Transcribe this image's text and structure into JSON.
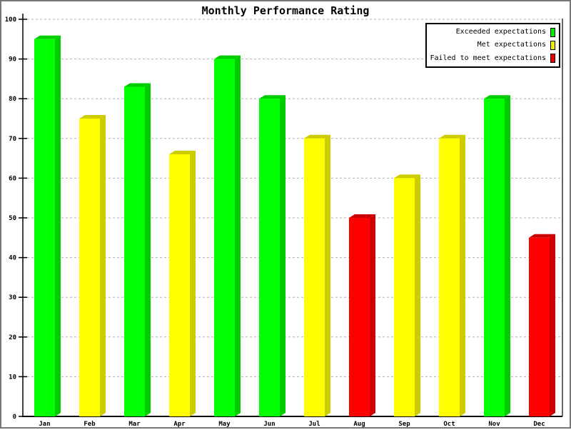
{
  "title": "Monthly Performance Rating",
  "chart_data": {
    "type": "bar",
    "title": "Monthly Performance Rating",
    "categories": [
      "Jan",
      "Feb",
      "Mar",
      "Apr",
      "May",
      "Jun",
      "Jul",
      "Aug",
      "Sep",
      "Oct",
      "Nov",
      "Dec"
    ],
    "values": [
      95,
      75,
      83,
      66,
      90,
      80,
      70,
      50,
      60,
      70,
      80,
      45
    ],
    "statuses": [
      "exceeded",
      "met",
      "exceeded",
      "met",
      "exceeded",
      "exceeded",
      "met",
      "failed",
      "met",
      "met",
      "exceeded",
      "failed"
    ],
    "series": [
      {
        "name": "Exceeded expectations",
        "months": [
          "Jan",
          "Mar",
          "May",
          "Jun",
          "Nov"
        ],
        "values": [
          95,
          83,
          90,
          80,
          80
        ]
      },
      {
        "name": "Met expectations",
        "months": [
          "Feb",
          "Apr",
          "Jul",
          "Sep",
          "Oct"
        ],
        "values": [
          75,
          66,
          70,
          60,
          70
        ]
      },
      {
        "name": "Failed to meet expectations",
        "months": [
          "Aug",
          "Dec"
        ],
        "values": [
          50,
          45
        ]
      }
    ],
    "xlabel": "",
    "ylabel": "",
    "ylim": [
      0,
      100
    ],
    "yticks": [
      0,
      10,
      20,
      30,
      40,
      50,
      60,
      70,
      80,
      90,
      100
    ],
    "grid": "horizontal-dashed",
    "grid_color": "#b0b0b0",
    "bar_style": "3d",
    "legend_position": "top-right",
    "legend": [
      {
        "label": "Exceeded expectations",
        "status": "exceeded",
        "color": "#00ee00"
      },
      {
        "label": "Met expectations",
        "status": "met",
        "color": "#eeee00"
      },
      {
        "label": "Failed to meet expectations",
        "status": "failed",
        "color": "#ee0000"
      }
    ],
    "colors": {
      "exceeded": {
        "front": "#00ff00",
        "shade": "#00cc00"
      },
      "met": {
        "front": "#ffff00",
        "shade": "#cccc00"
      },
      "failed": {
        "front": "#ff0000",
        "shade": "#cc0000"
      }
    }
  }
}
